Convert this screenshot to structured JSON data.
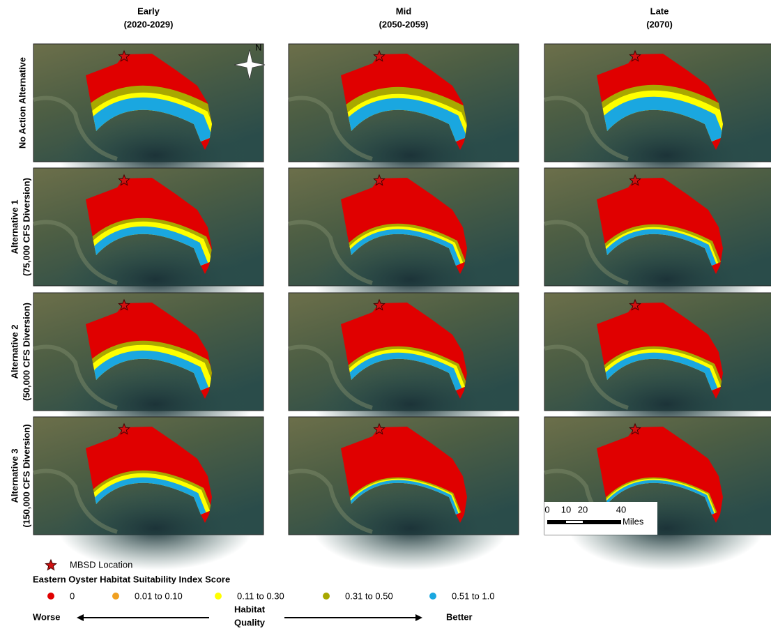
{
  "columns": [
    {
      "title": "Early",
      "period": "(2020-2029)"
    },
    {
      "title": "Mid",
      "period": "(2050-2059)"
    },
    {
      "title": "Late",
      "period": "(2070)"
    }
  ],
  "rows": [
    {
      "label": "No Action Alternative"
    },
    {
      "label": "Alternative 1",
      "sublabel": "(75,000 CFS Diversion)"
    },
    {
      "label": "Alternative 2",
      "sublabel": "(50,000 CFS Diversion)"
    },
    {
      "label": "Alternative 3",
      "sublabel": "(150,000 CFS Diversion)"
    }
  ],
  "north": "N",
  "scale_bar": {
    "ticks": [
      "0",
      "10",
      "20",
      "40"
    ],
    "unit": "Miles"
  },
  "legend": {
    "location_label": "MBSD Location",
    "title": "Eastern Oyster Habitat Suitability Index Score",
    "classes": [
      {
        "label": "0",
        "color": "#e00000"
      },
      {
        "label": "0.01 to 0.10",
        "color": "#f0a020"
      },
      {
        "label": "0.11 to 0.30",
        "color": "#ffff00"
      },
      {
        "label": "0.31 to 0.50",
        "color": "#a8a800"
      },
      {
        "label": "0.51 to 1.0",
        "color": "#1aa7e0"
      }
    ],
    "worse": "Worse",
    "quality_line1": "Habitat",
    "quality_line2": "Quality",
    "better": "Better"
  }
}
